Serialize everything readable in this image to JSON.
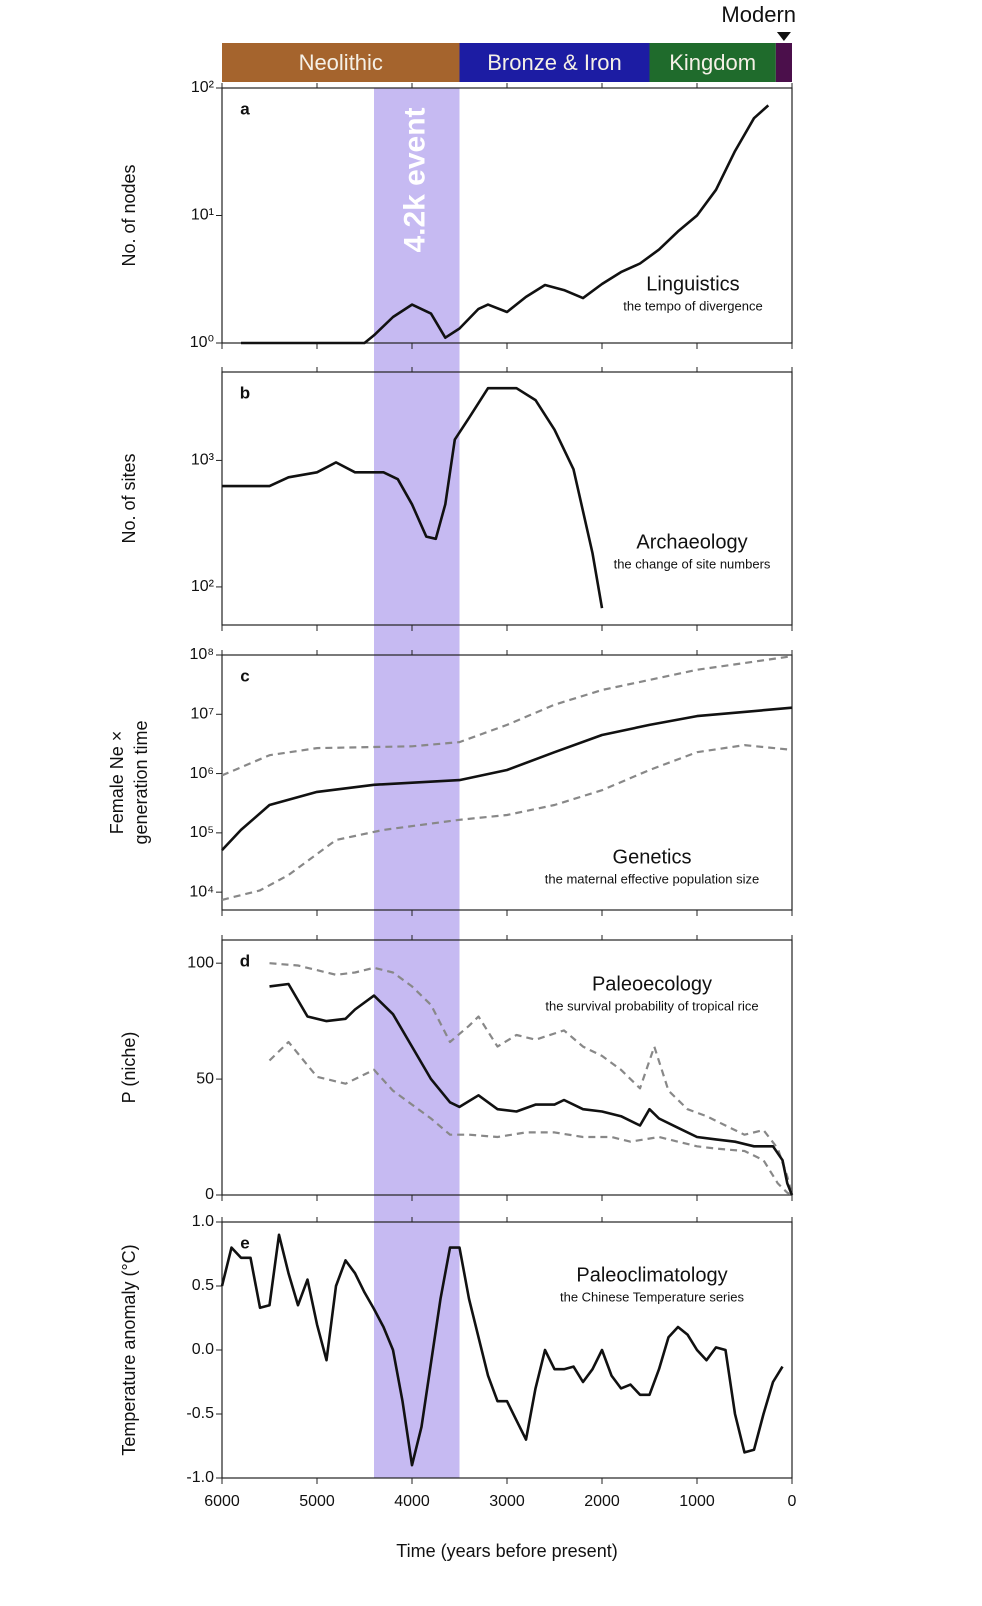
{
  "periods": [
    {
      "name": "Neolithic",
      "start": 6000,
      "end": 3500,
      "color": "#a5642d"
    },
    {
      "name": "Bronze & Iron",
      "start": 3500,
      "end": 1500,
      "color": "#1c1ca3"
    },
    {
      "name": "Kingdom",
      "start": 1500,
      "end": 170,
      "color": "#1f6b2c"
    },
    {
      "name": "Modern",
      "start": 170,
      "end": 0,
      "color": "#4b0f4b"
    }
  ],
  "event": {
    "label": "4.2k event",
    "start": 4400,
    "end": 3500,
    "color": "#c6baf2"
  },
  "chart_data": [
    {
      "type": "line",
      "letter": "a",
      "title": "Linguistics",
      "subtitle": "the tempo of divergence",
      "ylabel": [
        "No. of nodes"
      ],
      "log": true,
      "xlim": [
        6000,
        0
      ],
      "ylim": [
        1,
        100
      ],
      "yticks": [
        {
          "value": 1,
          "label": "10⁰"
        },
        {
          "value": 10,
          "label": "10¹"
        },
        {
          "value": 100,
          "label": "10²"
        }
      ],
      "series": [
        {
          "color": "#111111",
          "dash": false,
          "x": [
            5800,
            4500,
            4400,
            4200,
            4000,
            3800,
            3650,
            3500,
            3300,
            3200,
            3000,
            2800,
            2600,
            2400,
            2200,
            2000,
            1800,
            1600,
            1400,
            1200,
            1000,
            800,
            600,
            400,
            250
          ],
          "values": [
            1,
            1,
            1.15,
            1.6,
            2.0,
            1.7,
            1.1,
            1.3,
            1.85,
            2.0,
            1.75,
            2.3,
            2.85,
            2.6,
            2.25,
            2.9,
            3.6,
            4.2,
            5.4,
            7.5,
            10,
            15.9,
            32,
            58,
            73
          ]
        }
      ]
    },
    {
      "type": "line",
      "letter": "b",
      "title": "Archaeology",
      "subtitle": "the change of site numbers",
      "ylabel": [
        "No. of sites"
      ],
      "log": true,
      "xlim": [
        6000,
        0
      ],
      "ylim": [
        50,
        5000
      ],
      "yticks": [
        {
          "value": 100,
          "label": "10²"
        },
        {
          "value": 1000,
          "label": "10³"
        }
      ],
      "series": [
        {
          "color": "#111111",
          "dash": false,
          "x": [
            6000,
            5500,
            5300,
            5000,
            4800,
            4600,
            4300,
            4150,
            4000,
            3850,
            3750,
            3650,
            3550,
            3400,
            3200,
            2900,
            2700,
            2500,
            2300,
            2100,
            2000
          ],
          "values": [
            627,
            627,
            736,
            806,
            965,
            806,
            806,
            710,
            450,
            250,
            240,
            450,
            1460,
            2170,
            3720,
            3720,
            3000,
            1750,
            850,
            185,
            68
          ]
        }
      ]
    },
    {
      "type": "line",
      "letter": "c",
      "title": "Genetics",
      "subtitle": "the maternal effective population size",
      "ylabel": [
        "Female Ne ×",
        "generation time"
      ],
      "log": true,
      "xlim": [
        6000,
        0
      ],
      "ylim": [
        5000,
        100000000
      ],
      "yticks": [
        {
          "value": 10000,
          "label": "10⁴"
        },
        {
          "value": 100000,
          "label": "10⁵"
        },
        {
          "value": 1000000,
          "label": "10⁶"
        },
        {
          "value": 10000000,
          "label": "10⁷"
        },
        {
          "value": 100000000,
          "label": "10⁸"
        }
      ],
      "series": [
        {
          "color": "#888888",
          "dash": true,
          "x": [
            6000,
            5500,
            5000,
            4000,
            3500,
            3000,
            2500,
            2000,
            1500,
            1000,
            0
          ],
          "values": [
            933000,
            2040000,
            2690000,
            2880000,
            3390000,
            6610000,
            14500000,
            25700000,
            38000000,
            56200000,
            95500000
          ]
        },
        {
          "color": "#888888",
          "dash": true,
          "x": [
            6000,
            5600,
            5300,
            4800,
            4300,
            3500,
            3000,
            2500,
            2000,
            1500,
            1000,
            500,
            0
          ],
          "values": [
            7410,
            10700,
            19500,
            75900,
            112000,
            166000,
            200000,
            295000,
            525000,
            1150000,
            2290000,
            3020000,
            2510000
          ]
        },
        {
          "color": "#111111",
          "dash": false,
          "x": [
            6000,
            5800,
            5500,
            5000,
            4400,
            3500,
            3000,
            2500,
            2000,
            1500,
            1000,
            0
          ],
          "values": [
            51300,
            112000,
            295000,
            490000,
            646000,
            776000,
            1150000,
            2290000,
            4470000,
            6610000,
            9330000,
            12900000
          ]
        }
      ]
    },
    {
      "type": "line",
      "letter": "d",
      "title": "Paleoecology",
      "subtitle": "the survival probability of tropical rice",
      "ylabel": [
        "P (niche)"
      ],
      "log": false,
      "xlim": [
        6000,
        0
      ],
      "ylim": [
        0,
        110
      ],
      "yticks": [
        0,
        50,
        100
      ],
      "series": [
        {
          "color": "#888888",
          "dash": true,
          "x": [
            5500,
            5200,
            4800,
            4600,
            4400,
            4200,
            4000,
            3800,
            3600,
            3400,
            3300,
            3100,
            2900,
            2700,
            2400,
            2200,
            2000,
            1800,
            1600,
            1450,
            1300,
            1100,
            900,
            700,
            500,
            300,
            150,
            50,
            0
          ],
          "values": [
            100,
            99,
            95,
            96,
            98,
            96,
            90,
            82,
            66,
            73,
            77,
            64,
            69,
            67,
            71,
            64,
            60,
            54,
            46,
            64,
            45,
            37,
            34,
            30,
            26,
            28,
            20,
            8,
            0
          ]
        },
        {
          "color": "#888888",
          "dash": true,
          "x": [
            5500,
            5300,
            5000,
            4700,
            4400,
            4200,
            4000,
            3800,
            3600,
            3400,
            3100,
            2800,
            2500,
            2200,
            1900,
            1700,
            1400,
            1200,
            1000,
            800,
            500,
            300,
            150,
            50,
            0
          ],
          "values": [
            58,
            66,
            51,
            48,
            54,
            45,
            39,
            33,
            26,
            26,
            25,
            27,
            27,
            25,
            25,
            23,
            25,
            23,
            21,
            20,
            19,
            15,
            5,
            1,
            0
          ]
        },
        {
          "color": "#111111",
          "dash": false,
          "x": [
            5500,
            5300,
            5100,
            4900,
            4700,
            4600,
            4400,
            4200,
            4000,
            3800,
            3600,
            3500,
            3300,
            3100,
            2900,
            2700,
            2500,
            2400,
            2200,
            2000,
            1800,
            1600,
            1500,
            1400,
            1200,
            1000,
            800,
            600,
            400,
            200,
            100,
            50,
            0
          ],
          "values": [
            90,
            91,
            77,
            75,
            76,
            80,
            86,
            78,
            64,
            50,
            40,
            38,
            43,
            37,
            36,
            39,
            39,
            41,
            37,
            36,
            34,
            30,
            37,
            33,
            29,
            25,
            24,
            23,
            21,
            21,
            15,
            5,
            0
          ]
        }
      ]
    },
    {
      "type": "line",
      "letter": "e",
      "title": "Paleoclimatology",
      "subtitle": "the Chinese Temperature series",
      "ylabel": [
        "Temperature anomaly (°C)"
      ],
      "log": false,
      "xlim": [
        6000,
        0
      ],
      "ylim": [
        -1,
        1
      ],
      "yticks": [
        {
          "value": -1,
          "label": "-1.0"
        },
        -0.5,
        {
          "value": 0,
          "label": "0.0"
        },
        0.5,
        {
          "value": 1,
          "label": "1.0"
        }
      ],
      "xlabel": "Time (years before present)",
      "xticks": [
        6000,
        5000,
        4000,
        3000,
        2000,
        1000,
        0
      ],
      "series": [
        {
          "color": "#111111",
          "dash": false,
          "x": [
            6000,
            5900,
            5800,
            5700,
            5600,
            5500,
            5400,
            5300,
            5200,
            5100,
            5000,
            4900,
            4800,
            4700,
            4600,
            4500,
            4400,
            4300,
            4200,
            4100,
            4000,
            3900,
            3800,
            3700,
            3600,
            3500,
            3400,
            3300,
            3200,
            3100,
            3000,
            2900,
            2800,
            2700,
            2600,
            2500,
            2400,
            2300,
            2200,
            2100,
            2000,
            1900,
            1800,
            1700,
            1600,
            1500,
            1400,
            1300,
            1200,
            1100,
            1000,
            900,
            800,
            700,
            600,
            500,
            400,
            300,
            200,
            100
          ],
          "values": [
            0.5,
            0.8,
            0.72,
            0.72,
            0.33,
            0.35,
            0.9,
            0.6,
            0.35,
            0.55,
            0.2,
            -0.08,
            0.5,
            0.7,
            0.6,
            0.45,
            0.32,
            0.18,
            0.0,
            -0.4,
            -0.9,
            -0.6,
            -0.1,
            0.4,
            0.8,
            0.8,
            0.4,
            0.1,
            -0.2,
            -0.4,
            -0.4,
            -0.55,
            -0.7,
            -0.3,
            0.0,
            -0.15,
            -0.15,
            -0.13,
            -0.25,
            -0.15,
            0.0,
            -0.2,
            -0.3,
            -0.27,
            -0.35,
            -0.35,
            -0.15,
            0.1,
            0.18,
            0.12,
            0.0,
            -0.08,
            0.02,
            0.0,
            -0.5,
            -0.8,
            -0.78,
            -0.5,
            -0.25,
            -0.13
          ]
        }
      ]
    }
  ]
}
